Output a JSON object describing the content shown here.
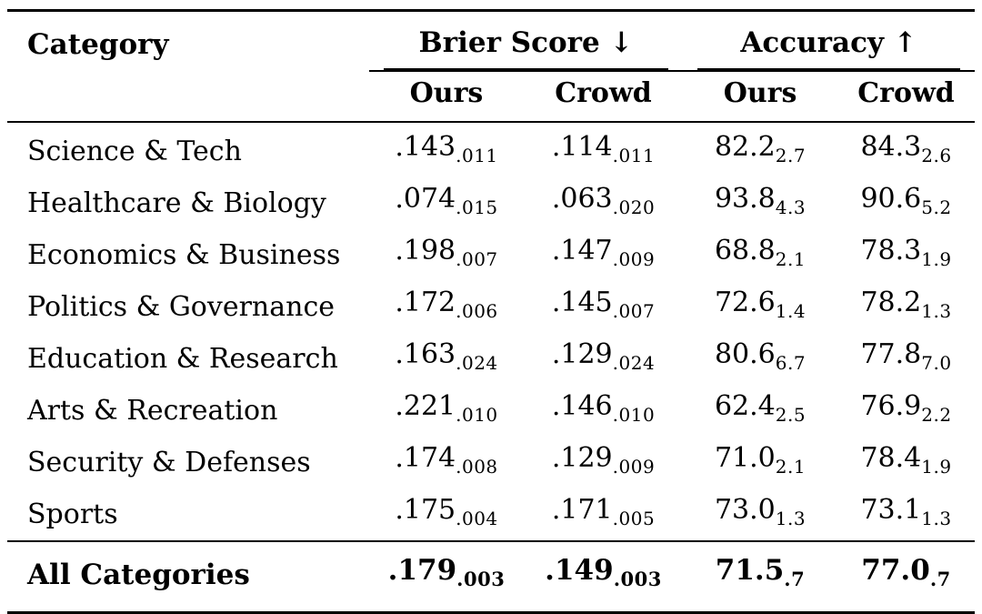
{
  "header": {
    "category_label": "Category",
    "groups": [
      {
        "label": "Brier Score ↓"
      },
      {
        "label": "Accuracy ↑"
      }
    ],
    "subcols": [
      "Ours",
      "Crowd",
      "Ours",
      "Crowd"
    ]
  },
  "rows": [
    {
      "category": "Science & Tech",
      "brier_ours": {
        "main": ".143",
        "sub": ".011"
      },
      "brier_crowd": {
        "main": ".114",
        "sub": ".011"
      },
      "acc_ours": {
        "main": "82.2",
        "sub": "2.7"
      },
      "acc_crowd": {
        "main": "84.3",
        "sub": "2.6"
      }
    },
    {
      "category": "Healthcare & Biology",
      "brier_ours": {
        "main": ".074",
        "sub": ".015"
      },
      "brier_crowd": {
        "main": ".063",
        "sub": ".020"
      },
      "acc_ours": {
        "main": "93.8",
        "sub": "4.3"
      },
      "acc_crowd": {
        "main": "90.6",
        "sub": "5.2"
      }
    },
    {
      "category": "Economics & Business",
      "brier_ours": {
        "main": ".198",
        "sub": ".007"
      },
      "brier_crowd": {
        "main": ".147",
        "sub": ".009"
      },
      "acc_ours": {
        "main": "68.8",
        "sub": "2.1"
      },
      "acc_crowd": {
        "main": "78.3",
        "sub": "1.9"
      }
    },
    {
      "category": "Politics & Governance",
      "brier_ours": {
        "main": ".172",
        "sub": ".006"
      },
      "brier_crowd": {
        "main": ".145",
        "sub": ".007"
      },
      "acc_ours": {
        "main": "72.6",
        "sub": "1.4"
      },
      "acc_crowd": {
        "main": "78.2",
        "sub": "1.3"
      }
    },
    {
      "category": "Education & Research",
      "brier_ours": {
        "main": ".163",
        "sub": ".024"
      },
      "brier_crowd": {
        "main": ".129",
        "sub": ".024"
      },
      "acc_ours": {
        "main": "80.6",
        "sub": "6.7"
      },
      "acc_crowd": {
        "main": "77.8",
        "sub": "7.0"
      }
    },
    {
      "category": "Arts & Recreation",
      "brier_ours": {
        "main": ".221",
        "sub": ".010"
      },
      "brier_crowd": {
        "main": ".146",
        "sub": ".010"
      },
      "acc_ours": {
        "main": "62.4",
        "sub": "2.5"
      },
      "acc_crowd": {
        "main": "76.9",
        "sub": "2.2"
      }
    },
    {
      "category": "Security & Defenses",
      "brier_ours": {
        "main": ".174",
        "sub": ".008"
      },
      "brier_crowd": {
        "main": ".129",
        "sub": ".009"
      },
      "acc_ours": {
        "main": "71.0",
        "sub": "2.1"
      },
      "acc_crowd": {
        "main": "78.4",
        "sub": "1.9"
      }
    },
    {
      "category": "Sports",
      "brier_ours": {
        "main": ".175",
        "sub": ".004"
      },
      "brier_crowd": {
        "main": ".171",
        "sub": ".005"
      },
      "acc_ours": {
        "main": "73.0",
        "sub": "1.3"
      },
      "acc_crowd": {
        "main": "73.1",
        "sub": "1.3"
      }
    }
  ],
  "footer": {
    "category": "All Categories",
    "brier_ours": {
      "main": ".179",
      "sub": ".003"
    },
    "brier_crowd": {
      "main": ".149",
      "sub": ".003"
    },
    "acc_ours": {
      "main": "71.5",
      "sub": ".7"
    },
    "acc_crowd": {
      "main": "77.0",
      "sub": ".7"
    }
  }
}
